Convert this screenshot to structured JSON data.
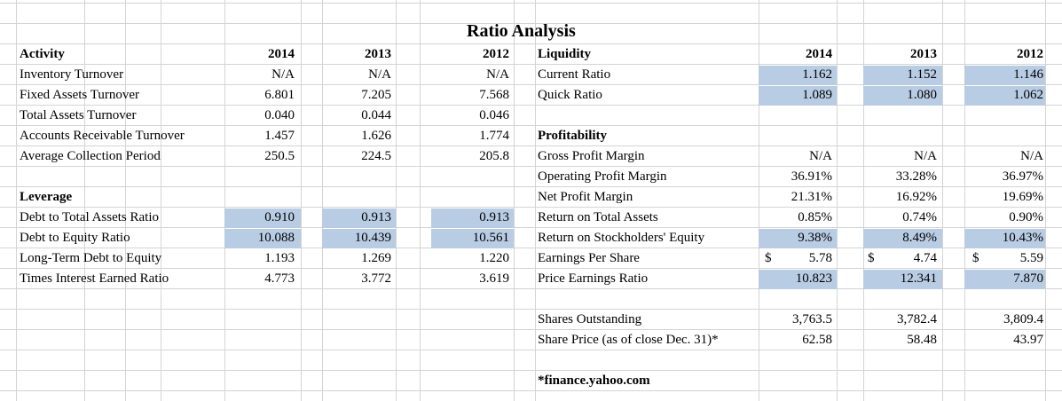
{
  "title": "Ratio Analysis",
  "years": [
    "2014",
    "2013",
    "2012"
  ],
  "activity": {
    "heading": "Activity",
    "rows": [
      {
        "label": "Inventory Turnover",
        "values": [
          "N/A",
          "N/A",
          "N/A"
        ]
      },
      {
        "label": "Fixed Assets Turnover",
        "values": [
          "6.801",
          "7.205",
          "7.568"
        ]
      },
      {
        "label": "Total Assets Turnover",
        "values": [
          "0.040",
          "0.044",
          "0.046"
        ]
      },
      {
        "label": "Accounts Receivable Turnover",
        "values": [
          "1.457",
          "1.626",
          "1.774"
        ]
      },
      {
        "label": "Average Collection Period",
        "values": [
          "250.5",
          "224.5",
          "205.8"
        ]
      }
    ]
  },
  "leverage": {
    "heading": "Leverage",
    "rows": [
      {
        "label": "Debt to Total Assets Ratio",
        "values": [
          "0.910",
          "0.913",
          "0.913"
        ],
        "highlight": true
      },
      {
        "label": "Debt to Equity Ratio",
        "values": [
          "10.088",
          "10.439",
          "10.561"
        ],
        "highlight": true
      },
      {
        "label": "Long-Term Debt to Equity",
        "values": [
          "1.193",
          "1.269",
          "1.220"
        ]
      },
      {
        "label": "Times Interest Earned Ratio",
        "values": [
          "4.773",
          "3.772",
          "3.619"
        ]
      }
    ]
  },
  "liquidity": {
    "heading": "Liquidity",
    "rows": [
      {
        "label": "Current Ratio",
        "values": [
          "1.162",
          "1.152",
          "1.146"
        ],
        "highlight": true
      },
      {
        "label": "Quick Ratio",
        "values": [
          "1.089",
          "1.080",
          "1.062"
        ],
        "highlight": true
      }
    ]
  },
  "profitability": {
    "heading": "Profitability",
    "rows": [
      {
        "label": "Gross Profit Margin",
        "values": [
          "N/A",
          "N/A",
          "N/A"
        ]
      },
      {
        "label": "Operating Profit Margin",
        "values": [
          "36.91%",
          "33.28%",
          "36.97%"
        ]
      },
      {
        "label": "Net Profit Margin",
        "values": [
          "21.31%",
          "16.92%",
          "19.69%"
        ]
      },
      {
        "label": "Return on Total Assets",
        "values": [
          "0.85%",
          "0.74%",
          "0.90%"
        ]
      },
      {
        "label": "Return on Stockholders' Equity",
        "values": [
          "9.38%",
          "8.49%",
          "10.43%"
        ],
        "highlight": true
      },
      {
        "label": "Earnings Per Share",
        "currency": "$",
        "values": [
          "5.78",
          "4.74",
          "5.59"
        ]
      },
      {
        "label": "Price Earnings Ratio",
        "values": [
          "10.823",
          "12.341",
          "7.870"
        ],
        "highlight": true
      }
    ]
  },
  "shares": {
    "rows": [
      {
        "label": "Shares Outstanding",
        "values": [
          "3,763.5",
          "3,782.4",
          "3,809.4"
        ]
      },
      {
        "label": "Share Price (as of close Dec. 31)*",
        "values": [
          "62.58",
          "58.48",
          "43.97"
        ]
      }
    ]
  },
  "footnote": "*finance.yahoo.com",
  "colors": {
    "highlight": "#b8cce4",
    "gridline": "#d4d4d4"
  }
}
